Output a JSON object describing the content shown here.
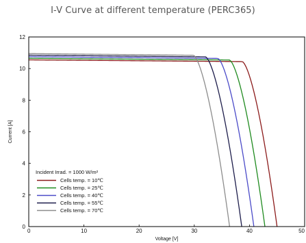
{
  "chart_data": {
    "type": "line",
    "title": "I-V Curve at different temperature (PERC365)",
    "xlabel": "Voltage [V]",
    "ylabel": "Current [A]",
    "xlim": [
      0,
      50
    ],
    "ylim": [
      0,
      12
    ],
    "xticks": [
      "0",
      "10",
      "20",
      "30",
      "40",
      "50"
    ],
    "yticks": [
      "0",
      "2",
      "4",
      "6",
      "8",
      "10",
      "12"
    ],
    "grid": false,
    "legend": {
      "placement": "bottom-left",
      "header": "Incident Irrad. = 1000 W/m²"
    },
    "series": [
      {
        "name": "Cells temp. = 10℃",
        "color": "#8b1a1a",
        "isc": 10.55,
        "voc": 45.0,
        "knee": 0.86,
        "n": 6
      },
      {
        "name": "Cells temp. = 25℃",
        "color": "#1e8a1e",
        "isc": 10.65,
        "voc": 42.8,
        "knee": 0.85,
        "n": 6
      },
      {
        "name": "Cells temp. = 40℃",
        "color": "#4a4ac8",
        "isc": 10.75,
        "voc": 40.8,
        "knee": 0.84,
        "n": 6
      },
      {
        "name": "Cells temp. = 55℃",
        "color": "#1c1c4a",
        "isc": 10.85,
        "voc": 38.6,
        "knee": 0.83,
        "n": 6
      },
      {
        "name": "Cells temp. = 70℃",
        "color": "#8c8c8c",
        "isc": 10.95,
        "voc": 36.4,
        "knee": 0.82,
        "n": 6
      }
    ]
  }
}
